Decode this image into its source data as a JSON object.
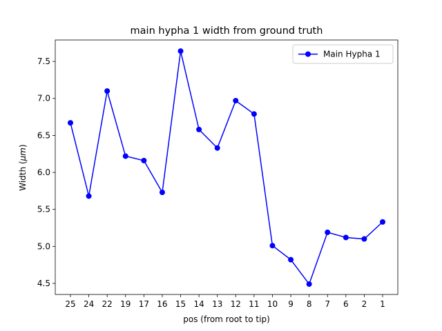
{
  "chart_data": {
    "type": "line",
    "title": "main hypha 1 width from ground truth",
    "xlabel": "pos (from root to tip)",
    "ylabel_prefix": "Width (",
    "ylabel_unit": "μm",
    "ylabel_suffix": ")",
    "categories": [
      "25",
      "24",
      "22",
      "19",
      "17",
      "16",
      "15",
      "14",
      "13",
      "12",
      "11",
      "10",
      "9",
      "8",
      "7",
      "6",
      "2",
      "1"
    ],
    "yticks": [
      "4.5",
      "5.0",
      "5.5",
      "6.0",
      "6.5",
      "7.0",
      "7.5"
    ],
    "ylim": [
      4.35,
      7.79
    ],
    "grid": false,
    "legend_position": "top-right",
    "series": [
      {
        "name": "Main Hypha 1",
        "color": "#0000ff",
        "marker": "circle",
        "values": [
          6.67,
          5.68,
          7.1,
          6.22,
          6.16,
          5.73,
          7.64,
          6.58,
          6.33,
          6.97,
          6.79,
          5.01,
          4.82,
          4.49,
          5.19,
          5.12,
          5.1,
          5.33
        ]
      }
    ]
  }
}
